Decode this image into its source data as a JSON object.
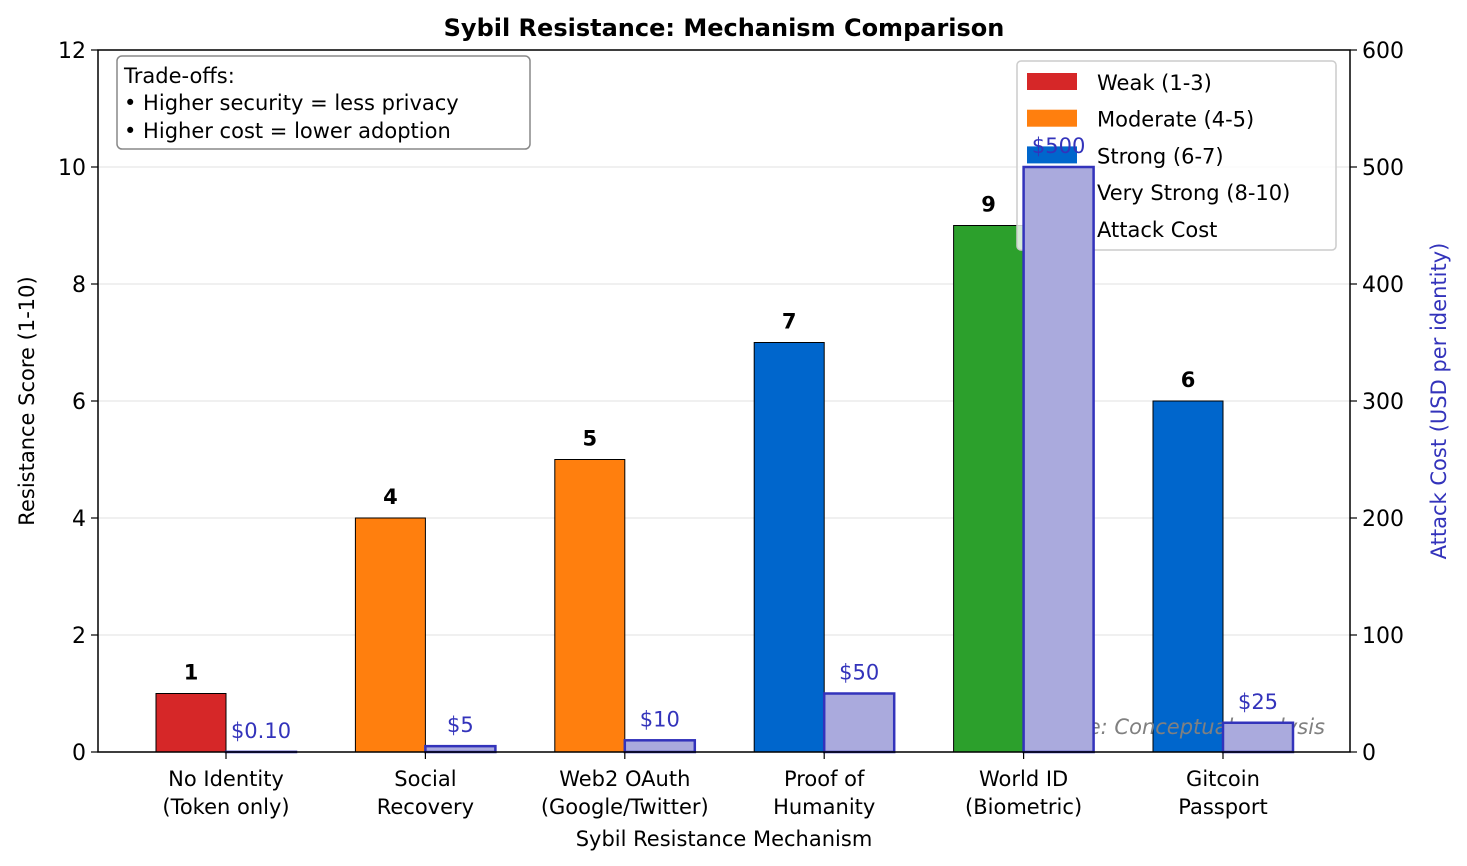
{
  "chart_data": {
    "type": "bar",
    "title": "Sybil Resistance: Mechanism Comparison",
    "xlabel": "Sybil Resistance Mechanism",
    "ylabel": "Resistance Score (1-10)",
    "y2label": "Attack Cost (USD per identity)",
    "ylim": [
      0,
      12
    ],
    "y2lim": [
      0,
      600
    ],
    "yticks": [
      "0",
      "2",
      "4",
      "6",
      "8",
      "10",
      "12"
    ],
    "y2ticks": [
      "0",
      "100",
      "200",
      "300",
      "400",
      "500",
      "600"
    ],
    "grid": "horizontal",
    "categories": [
      [
        "No Identity",
        "(Token only)"
      ],
      [
        "Social",
        "Recovery"
      ],
      [
        "Web2 OAuth",
        "(Google/Twitter)"
      ],
      [
        "Proof of",
        "Humanity"
      ],
      [
        "World ID",
        "(Biometric)"
      ],
      [
        "Gitcoin",
        "Passport"
      ]
    ],
    "series": [
      {
        "name": "Resistance Score",
        "axis": "left",
        "values": [
          1,
          4,
          5,
          7,
          9,
          6
        ],
        "labels": [
          "1",
          "4",
          "5",
          "7",
          "9",
          "6"
        ],
        "colors": [
          "#d62728",
          "#ff7f0e",
          "#ff7f0e",
          "#0066cc",
          "#2ca02c",
          "#0066cc"
        ]
      },
      {
        "name": "Attack Cost",
        "axis": "right",
        "values": [
          0.1,
          5,
          10,
          50,
          500,
          25
        ],
        "labels": [
          "$0.10",
          "$5",
          "$10",
          "$50",
          "$500",
          "$25"
        ],
        "color": "#aaaadd",
        "edge": "#3333bb"
      }
    ],
    "legend": {
      "placement": "top-right",
      "entries": [
        {
          "label": "Weak (1-3)",
          "color": "#d62728"
        },
        {
          "label": "Moderate (4-5)",
          "color": "#ff7f0e"
        },
        {
          "label": "Strong (6-7)",
          "color": "#0066cc"
        },
        {
          "label": "Very Strong (8-10)",
          "color": "#2ca02c"
        },
        {
          "label": "Attack Cost",
          "color": "#aaaadd"
        }
      ]
    },
    "annotation_box": [
      "Trade-offs:",
      "• Higher security = less privacy",
      "• Higher cost = lower adoption"
    ],
    "source_note": "Source: Conceptual analysis"
  }
}
